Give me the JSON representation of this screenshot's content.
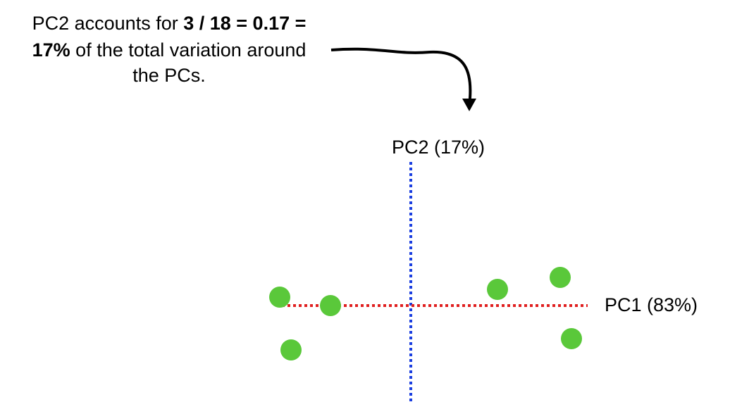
{
  "annotation": {
    "line1": {
      "normal": "PC2 accounts for",
      "bold": "3 / 18 = 0.17 ="
    },
    "line2": {
      "bold": "17%",
      "normal": "of the total variation around"
    },
    "line3": "the PCs."
  },
  "axes": {
    "pc2_label": "PC2 (17%)",
    "pc1_label": "PC1 (83%)"
  }
}
